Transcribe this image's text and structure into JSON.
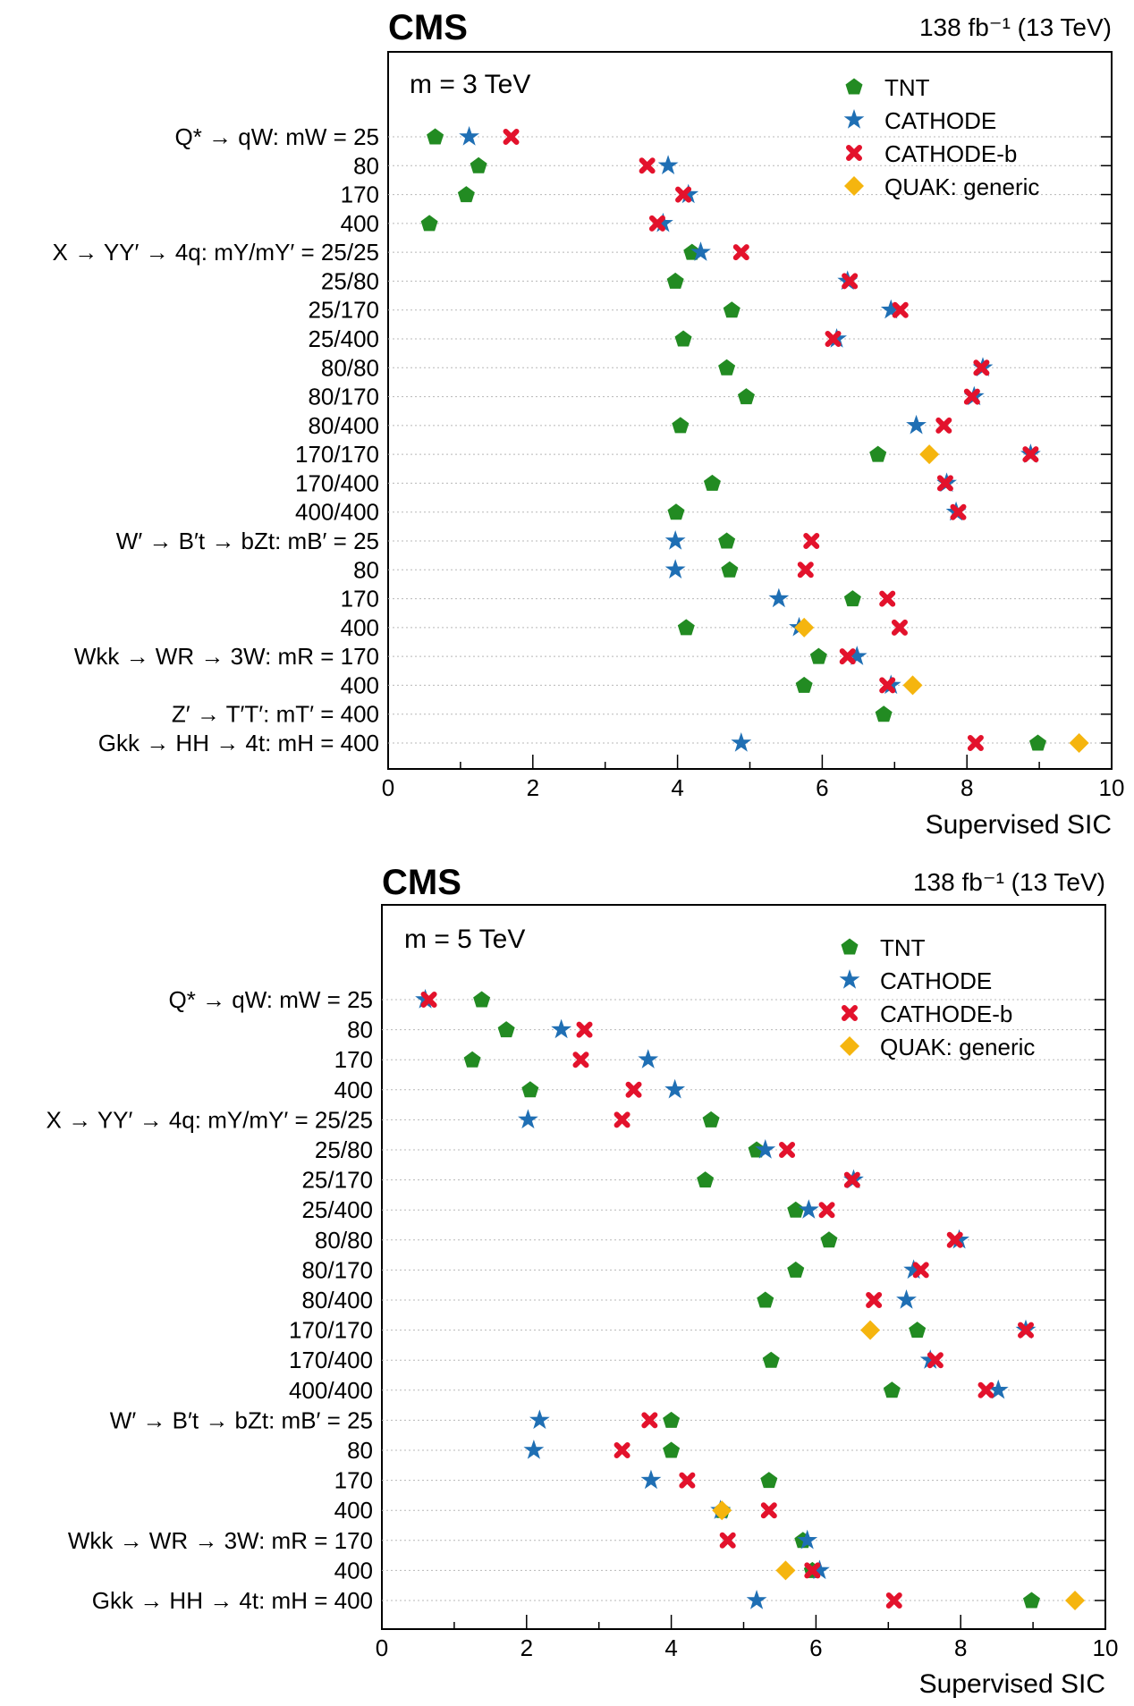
{
  "colors": {
    "TNT": "#228b22",
    "CATHODE": "#1f6fb4",
    "CATHODE-b": "#e3122c",
    "QUAK: generic": "#f5b50f"
  },
  "chart_data": [
    {
      "type": "scatter",
      "title": "CMS",
      "lumi": "138 fb⁻¹ (13 TeV)",
      "mass_note": "m = 3 TeV",
      "xlabel": "Supervised SIC",
      "xlim": [
        0,
        10
      ],
      "xticks": [
        "0",
        "2",
        "4",
        "6",
        "8",
        "10"
      ],
      "grid": "horizontal dotted",
      "legend_position": "top-right",
      "categories": [
        "Q* → qW: mW = 25",
        "80",
        "170",
        "400",
        "X → YY′ → 4q: mY/mY′ = 25/25",
        "25/80",
        "25/170",
        "25/400",
        "80/80",
        "80/170",
        "80/400",
        "170/170",
        "170/400",
        "400/400",
        "W′ → B′t → bZt: mB′ = 25",
        "80",
        "170",
        "400",
        "Wkk → WR → 3W: mR = 170",
        "400",
        "Z′ → T′T′: mT′ = 400",
        "Gkk → HH → 4t: mH = 400"
      ],
      "series": [
        {
          "name": "TNT",
          "values": [
            0.65,
            1.25,
            1.08,
            0.57,
            4.2,
            3.97,
            4.75,
            4.08,
            4.68,
            4.95,
            4.04,
            6.77,
            4.48,
            3.98,
            4.68,
            4.72,
            6.42,
            4.12,
            5.95,
            5.75,
            6.85,
            8.98
          ]
        },
        {
          "name": "CATHODE",
          "values": [
            1.12,
            3.87,
            4.15,
            3.8,
            4.32,
            6.35,
            6.95,
            6.2,
            8.22,
            8.1,
            7.3,
            8.88,
            7.72,
            7.85,
            3.97,
            3.97,
            5.4,
            5.68,
            6.48,
            6.95,
            null,
            4.88
          ]
        },
        {
          "name": "CATHODE-b",
          "values": [
            1.7,
            3.58,
            4.08,
            3.72,
            4.88,
            6.38,
            7.08,
            6.15,
            8.2,
            8.07,
            7.68,
            8.88,
            7.7,
            7.88,
            5.85,
            5.77,
            6.9,
            7.07,
            6.35,
            6.9,
            null,
            8.12
          ]
        },
        {
          "name": "QUAK: generic",
          "values": [
            null,
            null,
            null,
            null,
            null,
            null,
            null,
            null,
            null,
            null,
            null,
            7.48,
            null,
            null,
            null,
            null,
            null,
            5.75,
            null,
            7.25,
            null,
            9.55
          ]
        }
      ]
    },
    {
      "type": "scatter",
      "title": "CMS",
      "lumi": "138 fb⁻¹ (13 TeV)",
      "mass_note": "m = 5 TeV",
      "xlabel": "Supervised SIC",
      "xlim": [
        0,
        10
      ],
      "xticks": [
        "0",
        "2",
        "4",
        "6",
        "8",
        "10"
      ],
      "grid": "horizontal dotted",
      "legend_position": "top-right",
      "categories": [
        "Q* → qW: mW = 25",
        "80",
        "170",
        "400",
        "X → YY′ → 4q: mY/mY′ = 25/25",
        "25/80",
        "25/170",
        "25/400",
        "80/80",
        "80/170",
        "80/400",
        "170/170",
        "170/400",
        "400/400",
        "W′ → B′t → bZt: mB′ = 25",
        "80",
        "170",
        "400",
        "Wkk → WR → 3W: mR = 170",
        "400",
        "Gkk → HH → 4t: mH = 400"
      ],
      "series": [
        {
          "name": "TNT",
          "values": [
            1.38,
            1.72,
            1.25,
            2.05,
            4.55,
            5.18,
            4.47,
            5.72,
            6.18,
            5.72,
            5.3,
            7.4,
            5.38,
            7.05,
            4.0,
            4.0,
            5.35,
            4.7,
            5.82,
            5.95,
            8.98
          ]
        },
        {
          "name": "CATHODE",
          "values": [
            0.6,
            2.48,
            3.68,
            4.05,
            2.02,
            5.3,
            6.52,
            5.9,
            7.98,
            7.35,
            7.25,
            8.9,
            7.58,
            8.52,
            2.18,
            2.1,
            3.72,
            4.68,
            5.88,
            6.05,
            5.18
          ]
        },
        {
          "name": "CATHODE-b",
          "values": [
            0.65,
            2.8,
            2.75,
            3.48,
            3.32,
            5.6,
            6.5,
            6.15,
            7.92,
            7.45,
            6.8,
            8.9,
            7.65,
            8.35,
            3.7,
            3.32,
            4.22,
            5.35,
            4.78,
            5.95,
            7.08
          ]
        },
        {
          "name": "QUAK: generic",
          "values": [
            null,
            null,
            null,
            null,
            null,
            null,
            null,
            null,
            null,
            null,
            null,
            6.75,
            null,
            null,
            null,
            null,
            null,
            4.7,
            null,
            5.58,
            9.58
          ]
        }
      ]
    }
  ]
}
